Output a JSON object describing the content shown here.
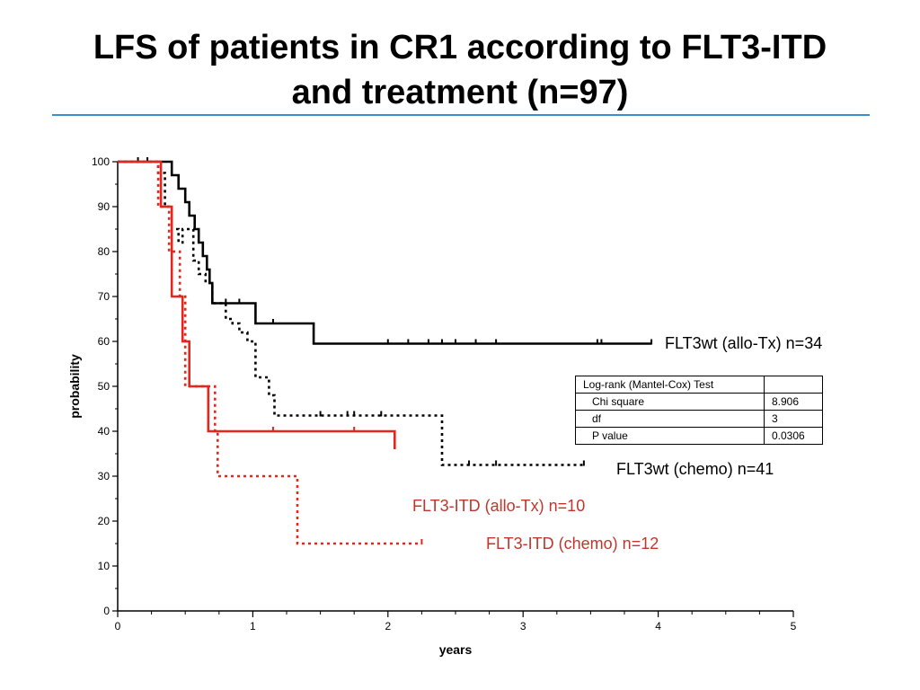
{
  "title_line1": "LFS of patients in CR1 according to FLT3-ITD",
  "title_line2": "and treatment (n=97)",
  "stats_table": {
    "header": "Log-rank (Mantel-Cox) Test",
    "rows": [
      {
        "label": "Chi square",
        "value": "8.906"
      },
      {
        "label": "df",
        "value": "3"
      },
      {
        "label": "P value",
        "value": "0.0306"
      }
    ]
  },
  "chart_data": {
    "type": "line",
    "subtype": "kaplan-meier",
    "xlabel": "years",
    "ylabel": "probability",
    "xlim": [
      0,
      5
    ],
    "ylim": [
      0,
      100
    ],
    "xticks": [
      "0",
      "1",
      "2",
      "3",
      "4",
      "5"
    ],
    "yticks": [
      "0",
      "10",
      "20",
      "30",
      "40",
      "50",
      "60",
      "70",
      "80",
      "90",
      "100"
    ],
    "grid": false,
    "series": [
      {
        "name": "FLT3wt (allo-Tx) n=34",
        "color": "#000000",
        "style": "solid",
        "steps": [
          [
            0,
            100
          ],
          [
            0.4,
            100
          ],
          [
            0.4,
            97
          ],
          [
            0.45,
            97
          ],
          [
            0.45,
            94
          ],
          [
            0.5,
            94
          ],
          [
            0.5,
            91
          ],
          [
            0.53,
            91
          ],
          [
            0.53,
            88
          ],
          [
            0.57,
            88
          ],
          [
            0.57,
            85
          ],
          [
            0.6,
            85
          ],
          [
            0.6,
            82
          ],
          [
            0.63,
            82
          ],
          [
            0.63,
            79
          ],
          [
            0.66,
            79
          ],
          [
            0.66,
            76
          ],
          [
            0.68,
            76
          ],
          [
            0.68,
            73
          ],
          [
            0.7,
            73
          ],
          [
            0.7,
            68.5
          ],
          [
            1.02,
            68.5
          ],
          [
            1.02,
            64
          ],
          [
            1.45,
            64
          ],
          [
            1.45,
            59.5
          ],
          [
            3.95,
            59.5
          ]
        ],
        "censors": [
          [
            0.8,
            68.5
          ],
          [
            0.9,
            68.5
          ],
          [
            1.15,
            64
          ],
          [
            2.0,
            59.5
          ],
          [
            2.15,
            59.5
          ],
          [
            2.3,
            59.5
          ],
          [
            2.4,
            59.5
          ],
          [
            2.5,
            59.5
          ],
          [
            2.65,
            59.5
          ],
          [
            2.8,
            59.5
          ],
          [
            3.55,
            59.5
          ],
          [
            3.58,
            59.5
          ],
          [
            3.95,
            59.5
          ]
        ]
      },
      {
        "name": "FLT3wt (chemo) n=41",
        "color": "#000000",
        "style": "dotted",
        "steps": [
          [
            0,
            100
          ],
          [
            0.3,
            100
          ],
          [
            0.3,
            97.5
          ],
          [
            0.35,
            97.5
          ],
          [
            0.35,
            90
          ],
          [
            0.4,
            90
          ],
          [
            0.4,
            85
          ],
          [
            0.45,
            85
          ],
          [
            0.45,
            82
          ],
          [
            0.48,
            82
          ],
          [
            0.48,
            85
          ],
          [
            0.56,
            85
          ],
          [
            0.56,
            78
          ],
          [
            0.6,
            78
          ],
          [
            0.6,
            75
          ],
          [
            0.65,
            75
          ],
          [
            0.65,
            73
          ],
          [
            0.7,
            73
          ],
          [
            0.7,
            68.5
          ],
          [
            0.8,
            68.5
          ],
          [
            0.8,
            65
          ],
          [
            0.85,
            65
          ],
          [
            0.85,
            64
          ],
          [
            0.9,
            64
          ],
          [
            0.9,
            62
          ],
          [
            0.96,
            62
          ],
          [
            0.96,
            60
          ],
          [
            1.02,
            60
          ],
          [
            1.02,
            52
          ],
          [
            1.12,
            52
          ],
          [
            1.12,
            48
          ],
          [
            1.16,
            48
          ],
          [
            1.16,
            43.5
          ],
          [
            2.4,
            43.5
          ],
          [
            2.4,
            32.5
          ],
          [
            3.45,
            32.5
          ]
        ],
        "censors": [
          [
            0.15,
            100
          ],
          [
            0.22,
            100
          ],
          [
            1.5,
            43.5
          ],
          [
            1.7,
            43.5
          ],
          [
            1.75,
            43.5
          ],
          [
            1.95,
            43.5
          ],
          [
            2.6,
            32.5
          ],
          [
            2.8,
            32.5
          ],
          [
            3.45,
            32.5
          ]
        ]
      },
      {
        "name": "FLT3-ITD (allo-Tx) n=10",
        "color": "#e3271e",
        "style": "solid",
        "steps": [
          [
            0,
            100
          ],
          [
            0.32,
            100
          ],
          [
            0.32,
            90
          ],
          [
            0.4,
            90
          ],
          [
            0.4,
            70
          ],
          [
            0.48,
            70
          ],
          [
            0.48,
            60
          ],
          [
            0.53,
            60
          ],
          [
            0.53,
            50
          ],
          [
            0.67,
            50
          ],
          [
            0.67,
            40
          ],
          [
            2.05,
            40
          ],
          [
            2.05,
            36
          ]
        ],
        "censors": [
          [
            1.15,
            40
          ],
          [
            1.75,
            40
          ]
        ]
      },
      {
        "name": "FLT3-ITD (chemo) n=12",
        "color": "#e3271e",
        "style": "dotted",
        "steps": [
          [
            0,
            100
          ],
          [
            0.3,
            100
          ],
          [
            0.3,
            90
          ],
          [
            0.38,
            90
          ],
          [
            0.38,
            80
          ],
          [
            0.46,
            80
          ],
          [
            0.46,
            70
          ],
          [
            0.5,
            70
          ],
          [
            0.5,
            50
          ],
          [
            0.72,
            50
          ],
          [
            0.72,
            40
          ],
          [
            0.74,
            40
          ],
          [
            0.74,
            30
          ],
          [
            1.33,
            30
          ],
          [
            1.33,
            15
          ],
          [
            2.25,
            15
          ]
        ],
        "censors": [
          [
            2.25,
            15
          ]
        ]
      }
    ]
  }
}
